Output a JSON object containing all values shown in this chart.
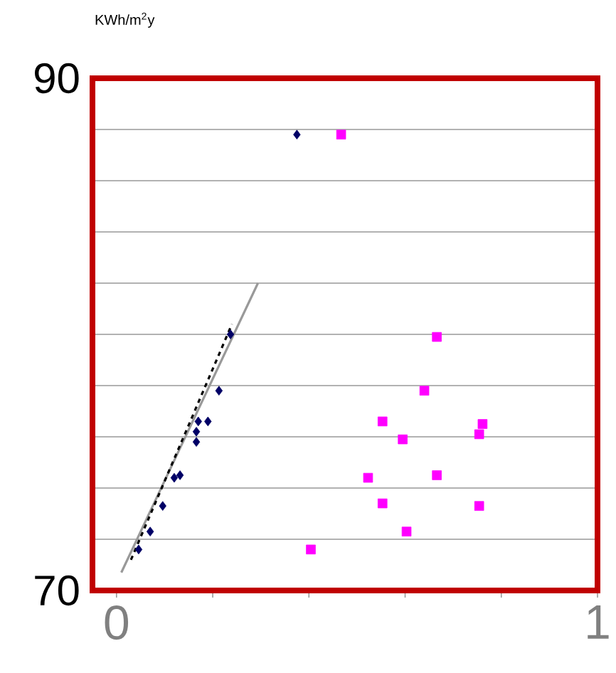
{
  "chart_data": {
    "type": "scatter",
    "ylabel": "KWh/m$^{2}$y",
    "xlim": [
      -0.05,
      1
    ],
    "ylim": [
      70,
      90
    ],
    "xticks": [
      0,
      {
        "value": 0.2,
        "label": null
      },
      {
        "value": 0.4,
        "label": null
      },
      {
        "value": 0.6,
        "label": null
      },
      {
        "value": 0.8,
        "label": null
      },
      1
    ],
    "yticks": [
      70,
      {
        "value": 72,
        "label": null
      },
      {
        "value": 74,
        "label": null
      },
      {
        "value": 76,
        "label": null
      },
      {
        "value": 78,
        "label": null
      },
      {
        "value": 80,
        "label": null
      },
      {
        "value": 82,
        "label": null
      },
      {
        "value": 84,
        "label": null
      },
      {
        "value": 86,
        "label": null
      },
      {
        "value": 88,
        "label": null
      },
      90
    ],
    "grid": "y",
    "series": [
      {
        "color": "#000066",
        "marker": "diamond",
        "x": [
          0.046,
          0.07,
          0.096,
          0.12,
          0.132,
          0.166,
          0.166,
          0.17,
          0.19,
          0.213,
          0.237,
          0.375
        ],
        "values": [
          71.6,
          72.3,
          73.3,
          74.4,
          74.5,
          75.8,
          76.2,
          76.6,
          76.6,
          77.8,
          80,
          87.8
        ]
      },
      {
        "color": "#ff00ff",
        "marker": "square",
        "x": [
          0.404,
          0.467,
          0.523,
          0.553,
          0.553,
          0.595,
          0.603,
          0.64,
          0.666,
          0.666,
          0.754,
          0.754,
          0.761
        ],
        "values": [
          71.6,
          87.8,
          74.4,
          76.6,
          73.4,
          75.9,
          72.3,
          77.8,
          79.9,
          74.5,
          76.1,
          73.3,
          76.5
        ]
      },
      {
        "type": "line",
        "color": "#999999",
        "line_style": "solid",
        "x": [
          0.01,
          0.294
        ],
        "values": [
          70.7,
          82
        ]
      },
      {
        "type": "line",
        "color": "#000000",
        "line_style": "dashed",
        "x": [
          0.03,
          0.24
        ],
        "values": [
          71.2,
          80.4
        ]
      }
    ]
  }
}
